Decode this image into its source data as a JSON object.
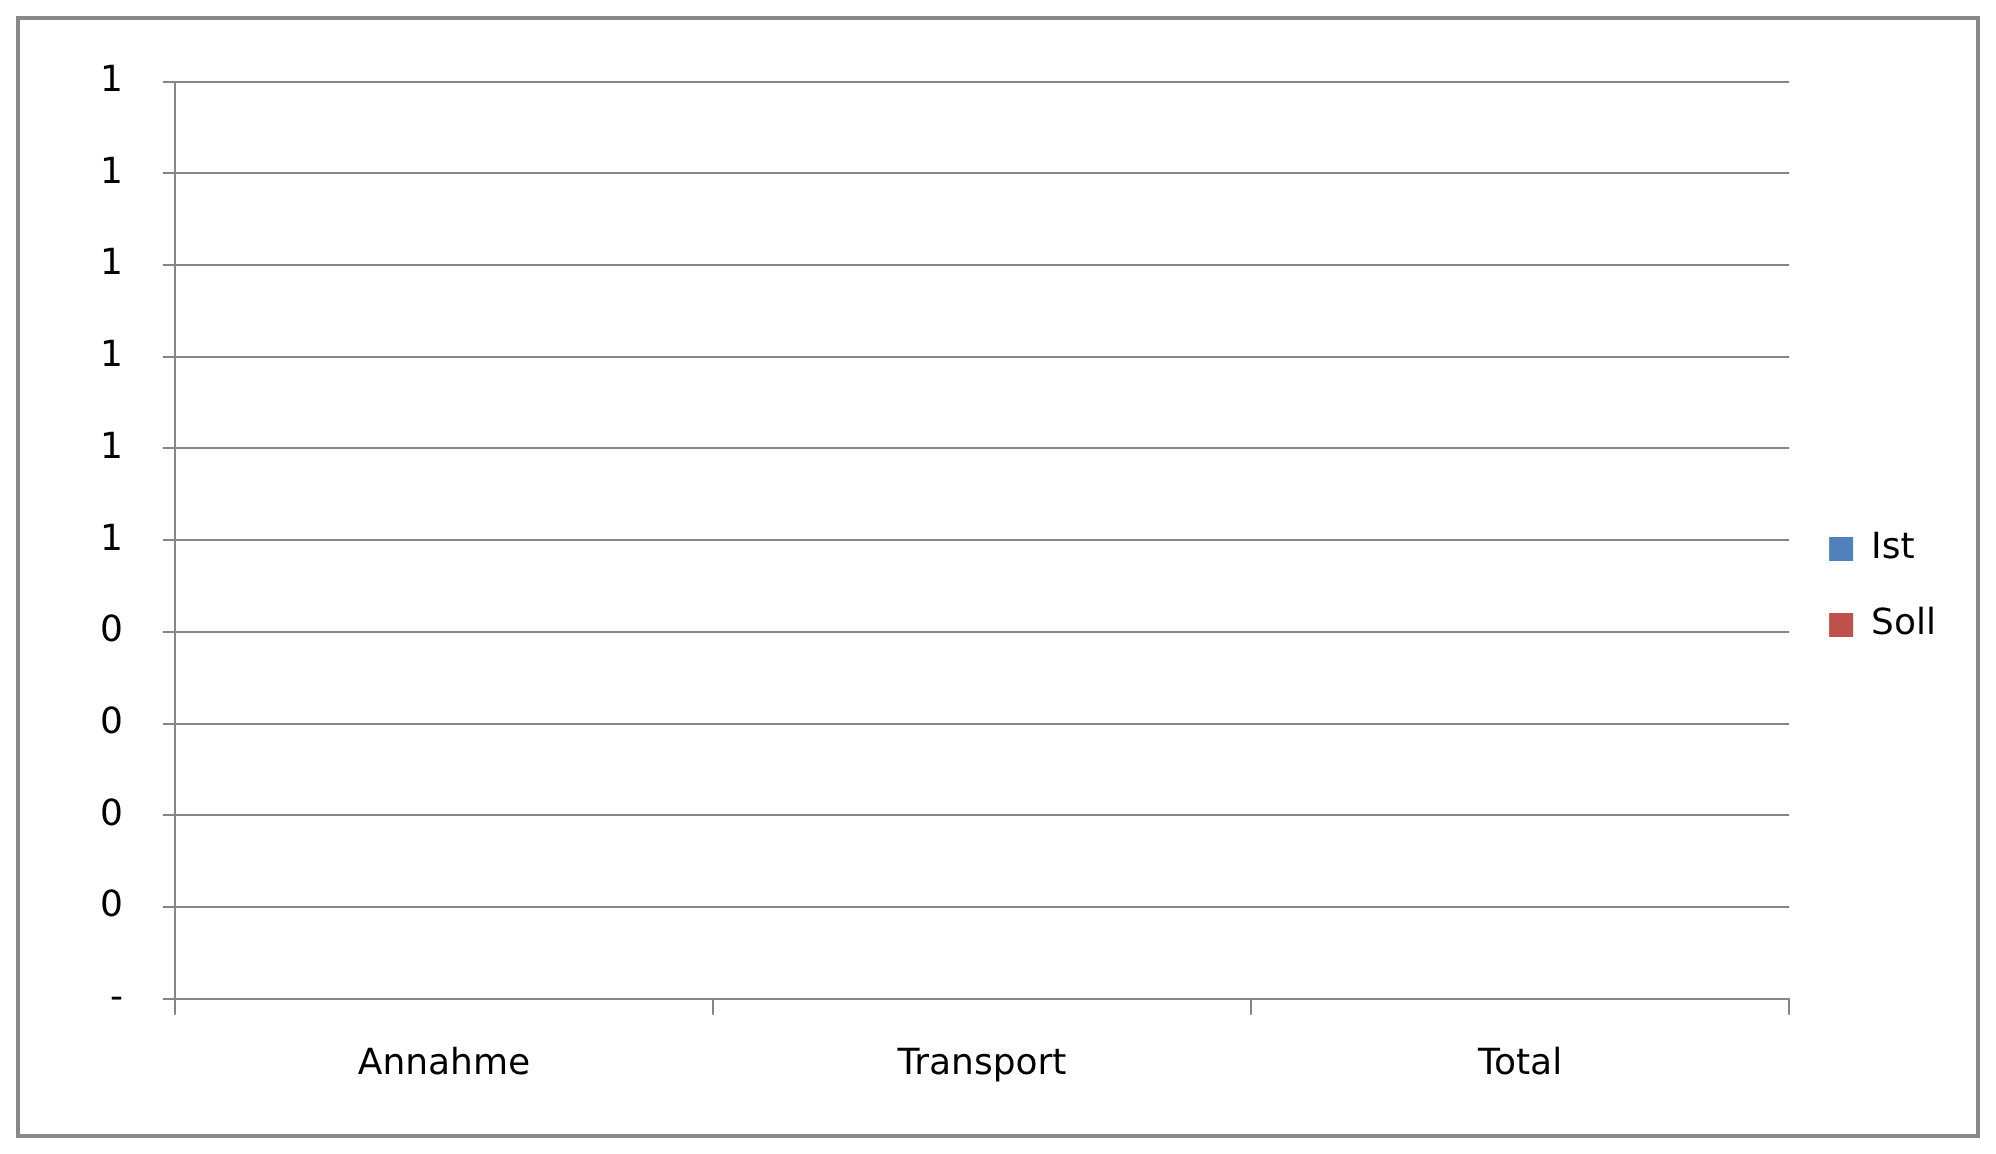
{
  "chart_data": {
    "type": "bar",
    "categories": [
      "Annahme",
      "Transport",
      "Total"
    ],
    "series": [
      {
        "name": "Ist",
        "color": "#4f81bd",
        "values": [
          0,
          0,
          0
        ]
      },
      {
        "name": "Soll",
        "color": "#c0504d",
        "values": [
          0,
          0,
          0
        ]
      }
    ],
    "ylim": [
      0,
      1
    ],
    "yticks": [
      {
        "value": 0,
        "label": "-"
      },
      {
        "value": 0.1,
        "label": "0"
      },
      {
        "value": 0.2,
        "label": "0"
      },
      {
        "value": 0.3,
        "label": "0"
      },
      {
        "value": 0.4,
        "label": "0"
      },
      {
        "value": 0.5,
        "label": "1"
      },
      {
        "value": 0.6,
        "label": "1"
      },
      {
        "value": 0.7,
        "label": "1"
      },
      {
        "value": 0.8,
        "label": "1"
      },
      {
        "value": 0.9,
        "label": "1"
      },
      {
        "value": 1,
        "label": "1"
      }
    ],
    "grid": "y",
    "legend": "right"
  }
}
